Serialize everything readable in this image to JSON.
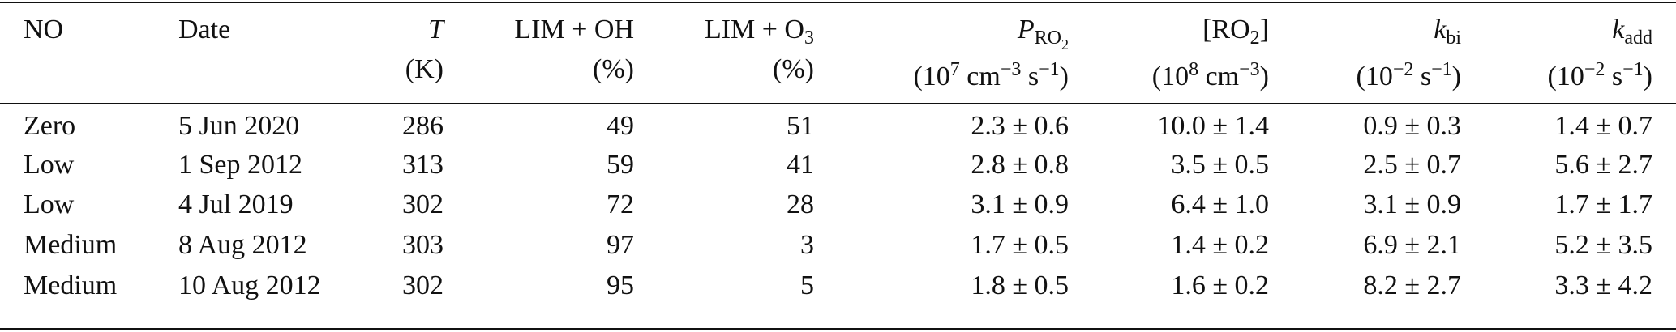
{
  "table": {
    "columns": [
      {
        "align": "left",
        "header": [
          [
            {
              "text": "NO"
            }
          ]
        ]
      },
      {
        "align": "left",
        "header": [
          [
            {
              "text": "Date"
            }
          ]
        ]
      },
      {
        "align": "right",
        "header": [
          [
            {
              "text": "T",
              "italic": true
            }
          ],
          [
            {
              "text": "(K)"
            }
          ]
        ]
      },
      {
        "align": "right",
        "header": [
          [
            {
              "text": "LIM + OH"
            }
          ],
          [
            {
              "text": "(%)"
            }
          ]
        ]
      },
      {
        "align": "right",
        "header": [
          [
            {
              "text": "LIM + O"
            },
            {
              "text": "3",
              "style": "sub"
            }
          ],
          [
            {
              "text": "(%)"
            }
          ]
        ]
      },
      {
        "align": "right",
        "header": [
          [
            {
              "text": "P",
              "italic": true
            },
            {
              "text": "RO",
              "style": "sub"
            },
            {
              "text": "2",
              "style": "subsub"
            }
          ],
          [
            {
              "text": "(10"
            },
            {
              "text": "7",
              "style": "sup"
            },
            {
              "text": " cm"
            },
            {
              "text": "−3",
              "style": "sup"
            },
            {
              "text": " s"
            },
            {
              "text": "−1",
              "style": "sup"
            },
            {
              "text": ")"
            }
          ]
        ]
      },
      {
        "align": "right",
        "header": [
          [
            {
              "text": "[RO"
            },
            {
              "text": "2",
              "style": "sub"
            },
            {
              "text": "]"
            }
          ],
          [
            {
              "text": "(10"
            },
            {
              "text": "8",
              "style": "sup"
            },
            {
              "text": " cm"
            },
            {
              "text": "−3",
              "style": "sup"
            },
            {
              "text": ")"
            }
          ]
        ]
      },
      {
        "align": "right",
        "header": [
          [
            {
              "text": "k",
              "italic": true
            },
            {
              "text": "bi",
              "style": "sub"
            }
          ],
          [
            {
              "text": "(10"
            },
            {
              "text": "−2",
              "style": "sup"
            },
            {
              "text": " s"
            },
            {
              "text": "−1",
              "style": "sup"
            },
            {
              "text": ")"
            }
          ]
        ]
      },
      {
        "align": "right",
        "header": [
          [
            {
              "text": "k",
              "italic": true
            },
            {
              "text": "add",
              "style": "sub"
            }
          ],
          [
            {
              "text": "(10"
            },
            {
              "text": "−2",
              "style": "sup"
            },
            {
              "text": " s"
            },
            {
              "text": "−1",
              "style": "sup"
            },
            {
              "text": ")"
            }
          ]
        ]
      }
    ],
    "rows": [
      [
        "Zero",
        "5 Jun 2020",
        "286",
        "49",
        "51",
        "2.3 ± 0.6",
        "10.0 ± 1.4",
        "0.9 ± 0.3",
        "1.4 ± 0.7"
      ],
      [
        "Low",
        "1 Sep 2012",
        "313",
        "59",
        "41",
        "2.8 ± 0.8",
        "3.5 ± 0.5",
        "2.5 ± 0.7",
        "5.6 ± 2.7"
      ],
      [
        "Low",
        "4 Jul 2019",
        "302",
        "72",
        "28",
        "3.1 ± 0.9",
        "6.4 ± 1.0",
        "3.1 ± 0.9",
        "1.7 ± 1.7"
      ],
      [
        "Medium",
        "8 Aug 2012",
        "303",
        "97",
        "3",
        "1.7 ± 0.5",
        "1.4 ± 0.2",
        "6.9 ± 2.1",
        "5.2 ± 3.5"
      ],
      [
        "Medium",
        "10 Aug 2012",
        "302",
        "95",
        "5",
        "1.8 ± 0.5",
        "1.6 ± 0.2",
        "8.2 ± 2.7",
        "3.3 ± 4.2"
      ]
    ]
  }
}
